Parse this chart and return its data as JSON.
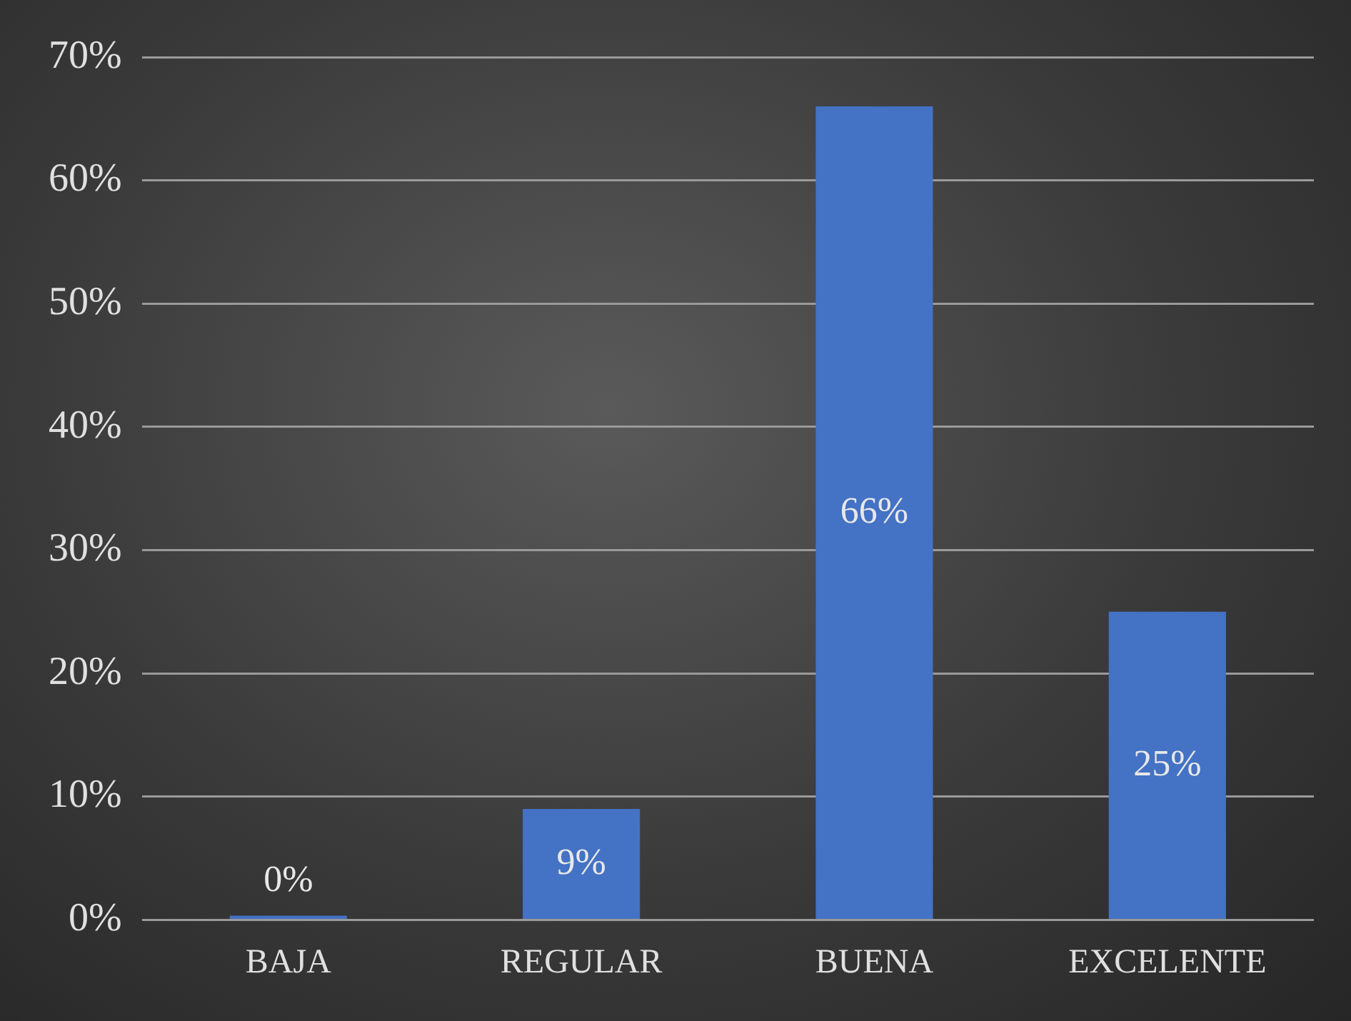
{
  "chart_data": {
    "type": "bar",
    "categories": [
      "BAJA",
      "REGULAR",
      "BUENA",
      "EXCELENTE"
    ],
    "values": [
      0,
      9,
      66,
      25
    ],
    "value_labels": [
      "0%",
      "9%",
      "66%",
      "25%"
    ],
    "color": "#4472c4",
    "ylim": [
      0,
      70
    ],
    "yticks": [
      {
        "value": 0,
        "label": "0%"
      },
      {
        "value": 10,
        "label": "10%"
      },
      {
        "value": 20,
        "label": "20%"
      },
      {
        "value": 30,
        "label": "30%"
      },
      {
        "value": 40,
        "label": "40%"
      },
      {
        "value": 50,
        "label": "50%"
      },
      {
        "value": 60,
        "label": "60%"
      },
      {
        "value": 70,
        "label": "70%"
      }
    ],
    "grid": "y"
  }
}
